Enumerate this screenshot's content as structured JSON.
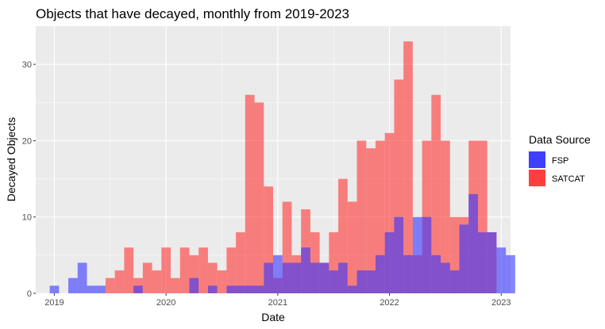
{
  "chart_data": {
    "type": "bar",
    "subtype": "overlaid-histogram",
    "title": "Objects that have decayed, monthly from 2019-2023",
    "xlabel": "Date",
    "ylabel": "Decayed Objects",
    "x_start": "2019-01",
    "bin_width_months": 1,
    "xlim": [
      "2018-11",
      "2023-02"
    ],
    "ylim": [
      0,
      35
    ],
    "x_ticks": [
      {
        "value": "2019-01",
        "label": "2019"
      },
      {
        "value": "2020-01",
        "label": "2020"
      },
      {
        "value": "2021-01",
        "label": "2021"
      },
      {
        "value": "2022-01",
        "label": "2022"
      },
      {
        "value": "2023-01",
        "label": "2023"
      }
    ],
    "y_ticks": [
      0,
      10,
      20,
      30
    ],
    "grid": true,
    "legend": {
      "title": "Data Source",
      "position": "right",
      "entries": [
        "FSP",
        "SATCAT"
      ]
    },
    "series": [
      {
        "name": "SATCAT",
        "color": "#ff3333",
        "opacity": 0.6,
        "values": [
          0,
          0,
          0,
          0,
          0,
          0,
          2,
          3,
          6,
          2,
          4,
          3,
          6,
          2,
          6,
          5,
          6,
          4,
          3,
          6,
          8,
          26,
          25,
          14,
          2,
          12,
          5,
          11,
          8,
          4,
          8,
          15,
          12,
          20,
          19,
          20,
          21,
          28,
          33,
          5,
          20,
          26,
          20,
          10,
          10,
          20,
          20,
          8,
          0,
          0
        ]
      },
      {
        "name": "FSP",
        "color": "#3333ff",
        "opacity": 0.6,
        "values": [
          1,
          0,
          2,
          4,
          1,
          1,
          0,
          0,
          0,
          1,
          0,
          0,
          0,
          0,
          0,
          2,
          0,
          1,
          0,
          1,
          1,
          1,
          1,
          4,
          5,
          4,
          4,
          6,
          4,
          4,
          3,
          4,
          1,
          3,
          3,
          5,
          8,
          10,
          5,
          10,
          10,
          5,
          4,
          3,
          9,
          13,
          8,
          8,
          6,
          5
        ]
      }
    ]
  }
}
